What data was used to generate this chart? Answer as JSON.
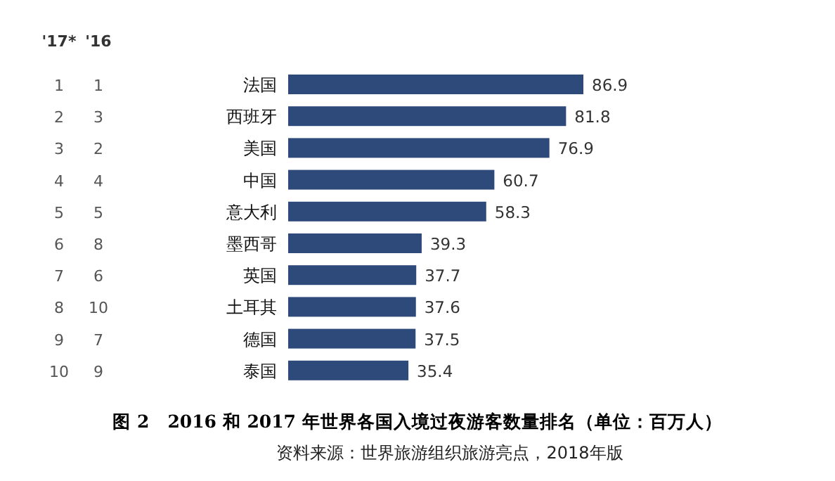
{
  "chart_data": {
    "type": "bar",
    "orientation": "horizontal",
    "title": "图 2　2016 和 2017 年世界各国入境过夜游客数量排名（单位：百万人）",
    "categories": [
      "法国",
      "西班牙",
      "美国",
      "中国",
      "意大利",
      "墨西哥",
      "英国",
      "土耳其",
      "德国",
      "泰国"
    ],
    "values": [
      86.9,
      81.8,
      76.9,
      60.7,
      58.3,
      39.3,
      37.7,
      37.6,
      37.5,
      35.4
    ],
    "color": "#2e4a7a",
    "data_labels": true,
    "annotations": [
      "'17*",
      "'16",
      "1",
      "1",
      "2",
      "3",
      "3",
      "2",
      "4",
      "4",
      "5",
      "5",
      "6",
      "8",
      "7",
      "6",
      "8",
      "10",
      "9",
      "7",
      "10",
      "9",
      "资料来源：世界旅游组织旅游亮点，2018年版"
    ]
  }
}
